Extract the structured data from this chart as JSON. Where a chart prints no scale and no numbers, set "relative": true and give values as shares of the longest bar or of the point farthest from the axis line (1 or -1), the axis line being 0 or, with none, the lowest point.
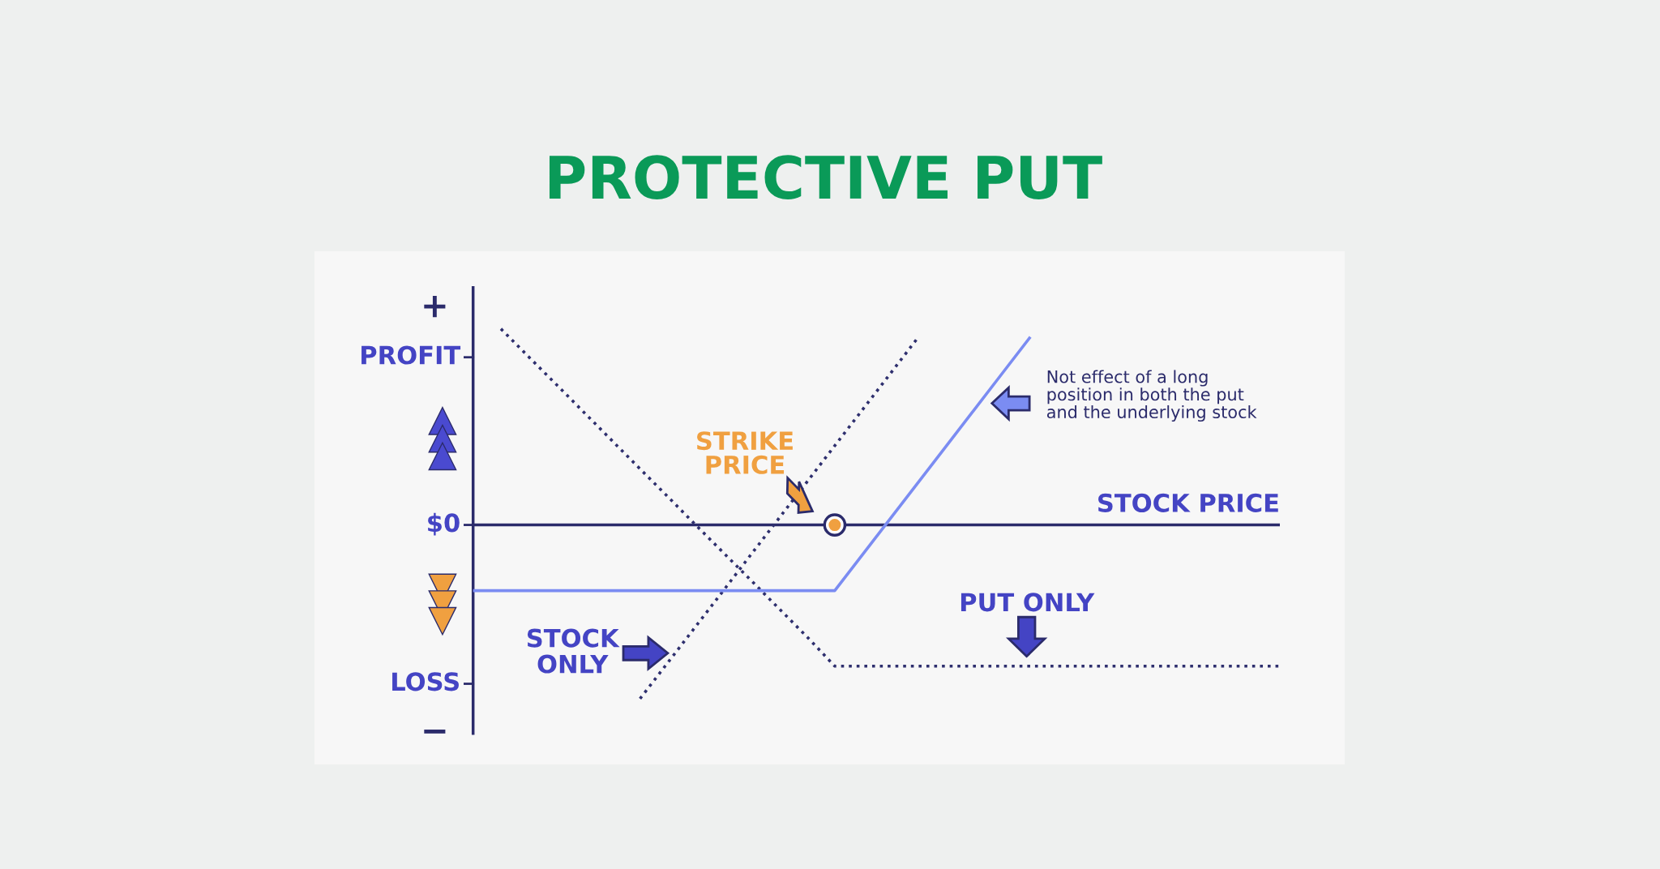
{
  "chart_data": {
    "type": "line",
    "title": "PROTECTIVE PUT",
    "xlabel": "STOCK PRICE",
    "relative": true,
    "line_style": "dotted",
    "categories": [
      null,
      null,
      null,
      null,
      null,
      null,
      null,
      null,
      null,
      null,
      null,
      null,
      null,
      null,
      null,
      null,
      null,
      null,
      null,
      null,
      null,
      null,
      null,
      null,
      null,
      null,
      null,
      null,
      null,
      null
    ],
    "series": [
      {
        "name": "STOCK\nONLY",
        "color": "#2e2f6e",
        "values": [
          null,
          null,
          null,
          null,
          null,
          null,
          -0.886,
          -0.702,
          -0.518,
          -0.334,
          -0.149,
          0.035,
          0.219,
          0.404,
          0.588,
          0.772,
          0.957,
          null,
          null,
          null,
          null,
          null,
          null,
          null,
          null,
          null,
          null,
          null,
          null,
          null
        ]
      },
      {
        "name": "PUT ONLY",
        "color": "#2e2f6e",
        "values": [
          null,
          1,
          0.857,
          0.715,
          0.572,
          0.429,
          0.286,
          0.144,
          0.0,
          -0.142,
          -0.284,
          -0.427,
          -0.57,
          -0.72,
          -0.72,
          -0.72,
          -0.72,
          -0.72,
          -0.72,
          -0.72,
          -0.72,
          -0.72,
          -0.72,
          -0.72,
          -0.72,
          -0.72,
          -0.72,
          -0.72,
          -0.72,
          -0.72
        ]
      },
      {
        "name": "Not effect of a long\nposition in both the put\nand the underlying stock",
        "color": "#7b8cf2",
        "line_style": "solid",
        "values": [
          -0.335,
          -0.335,
          -0.335,
          -0.335,
          -0.335,
          -0.335,
          -0.335,
          -0.335,
          -0.335,
          -0.335,
          -0.335,
          -0.335,
          -0.335,
          -0.335,
          -0.151,
          0.033,
          0.217,
          0.401,
          0.585,
          0.769,
          0.953,
          null,
          null,
          null,
          null,
          null,
          null,
          null,
          null,
          null
        ]
      }
    ],
    "ref_lines": [
      {
        "axis": "y",
        "value": 0,
        "color": "#2b2b6b",
        "line_style": "solid"
      }
    ],
    "annotations": [
      "+",
      "PROFIT",
      "$0",
      "LOSS",
      "−",
      "STRIKE\nPRICE"
    ]
  }
}
